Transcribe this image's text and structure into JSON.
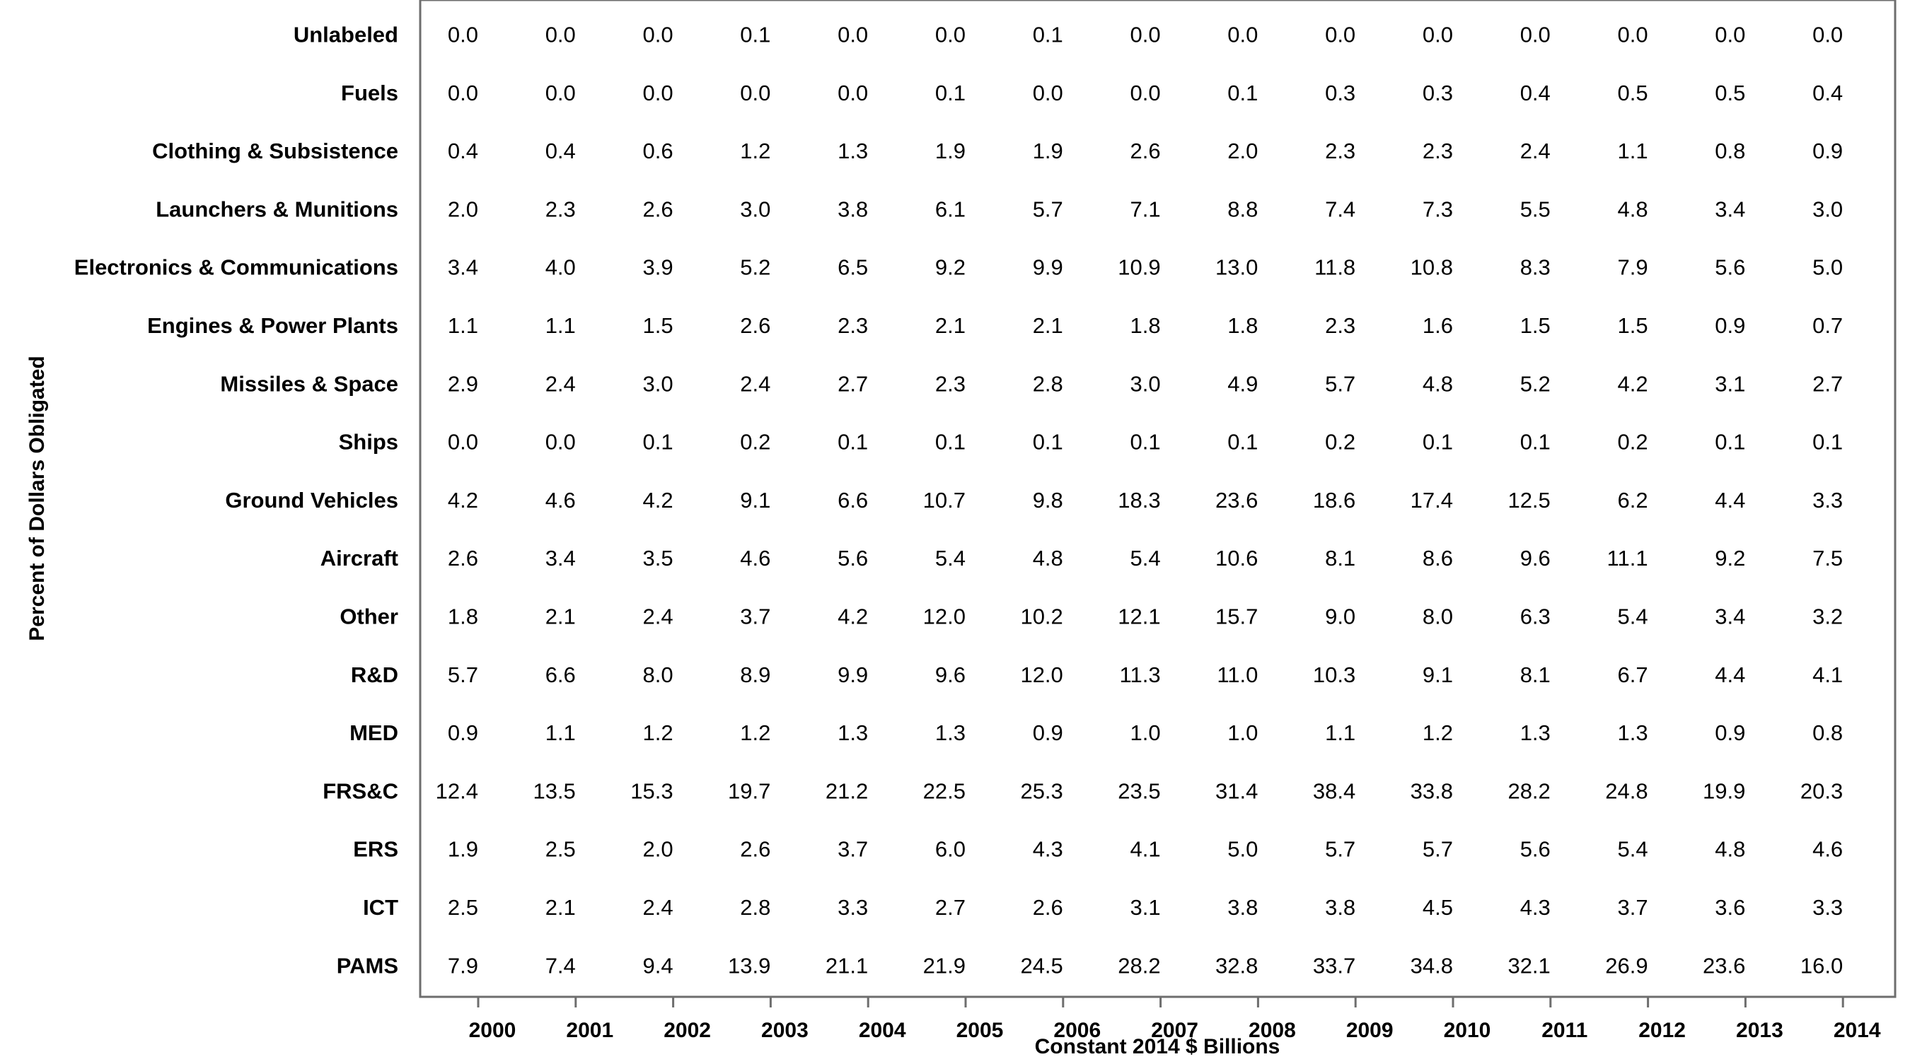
{
  "chart_data": {
    "type": "table",
    "title": "",
    "xlabel": "Constant 2014 $ Billions",
    "ylabel": "Percent of Dollars Obligated",
    "x": [
      "2000",
      "2001",
      "2002",
      "2003",
      "2004",
      "2005",
      "2006",
      "2007",
      "2008",
      "2009",
      "2010",
      "2011",
      "2012",
      "2013",
      "2014"
    ],
    "rows": [
      {
        "label": "Unlabeled",
        "values": [
          "0.0",
          "0.0",
          "0.0",
          "0.1",
          "0.0",
          "0.0",
          "0.1",
          "0.0",
          "0.0",
          "0.0",
          "0.0",
          "0.0",
          "0.0",
          "0.0",
          "0.0"
        ]
      },
      {
        "label": "Fuels",
        "values": [
          "0.0",
          "0.0",
          "0.0",
          "0.0",
          "0.0",
          "0.1",
          "0.0",
          "0.0",
          "0.1",
          "0.3",
          "0.3",
          "0.4",
          "0.5",
          "0.5",
          "0.4"
        ]
      },
      {
        "label": "Clothing & Subsistence",
        "values": [
          "0.4",
          "0.4",
          "0.6",
          "1.2",
          "1.3",
          "1.9",
          "1.9",
          "2.6",
          "2.0",
          "2.3",
          "2.3",
          "2.4",
          "1.1",
          "0.8",
          "0.9"
        ]
      },
      {
        "label": "Launchers & Munitions",
        "values": [
          "2.0",
          "2.3",
          "2.6",
          "3.0",
          "3.8",
          "6.1",
          "5.7",
          "7.1",
          "8.8",
          "7.4",
          "7.3",
          "5.5",
          "4.8",
          "3.4",
          "3.0"
        ]
      },
      {
        "label": "Electronics & Communications",
        "values": [
          "3.4",
          "4.0",
          "3.9",
          "5.2",
          "6.5",
          "9.2",
          "9.9",
          "10.9",
          "13.0",
          "11.8",
          "10.8",
          "8.3",
          "7.9",
          "5.6",
          "5.0"
        ]
      },
      {
        "label": "Engines & Power Plants",
        "values": [
          "1.1",
          "1.1",
          "1.5",
          "2.6",
          "2.3",
          "2.1",
          "2.1",
          "1.8",
          "1.8",
          "2.3",
          "1.6",
          "1.5",
          "1.5",
          "0.9",
          "0.7"
        ]
      },
      {
        "label": "Missiles & Space",
        "values": [
          "2.9",
          "2.4",
          "3.0",
          "2.4",
          "2.7",
          "2.3",
          "2.8",
          "3.0",
          "4.9",
          "5.7",
          "4.8",
          "5.2",
          "4.2",
          "3.1",
          "2.7"
        ]
      },
      {
        "label": "Ships",
        "values": [
          "0.0",
          "0.0",
          "0.1",
          "0.2",
          "0.1",
          "0.1",
          "0.1",
          "0.1",
          "0.1",
          "0.2",
          "0.1",
          "0.1",
          "0.2",
          "0.1",
          "0.1"
        ]
      },
      {
        "label": "Ground Vehicles",
        "values": [
          "4.2",
          "4.6",
          "4.2",
          "9.1",
          "6.6",
          "10.7",
          "9.8",
          "18.3",
          "23.6",
          "18.6",
          "17.4",
          "12.5",
          "6.2",
          "4.4",
          "3.3"
        ]
      },
      {
        "label": "Aircraft",
        "values": [
          "2.6",
          "3.4",
          "3.5",
          "4.6",
          "5.6",
          "5.4",
          "4.8",
          "5.4",
          "10.6",
          "8.1",
          "8.6",
          "9.6",
          "11.1",
          "9.2",
          "7.5"
        ]
      },
      {
        "label": "Other",
        "values": [
          "1.8",
          "2.1",
          "2.4",
          "3.7",
          "4.2",
          "12.0",
          "10.2",
          "12.1",
          "15.7",
          "9.0",
          "8.0",
          "6.3",
          "5.4",
          "3.4",
          "3.2"
        ]
      },
      {
        "label": "R&D",
        "values": [
          "5.7",
          "6.6",
          "8.0",
          "8.9",
          "9.9",
          "9.6",
          "12.0",
          "11.3",
          "11.0",
          "10.3",
          "9.1",
          "8.1",
          "6.7",
          "4.4",
          "4.1"
        ]
      },
      {
        "label": "MED",
        "values": [
          "0.9",
          "1.1",
          "1.2",
          "1.2",
          "1.3",
          "1.3",
          "0.9",
          "1.0",
          "1.0",
          "1.1",
          "1.2",
          "1.3",
          "1.3",
          "0.9",
          "0.8"
        ]
      },
      {
        "label": "FRS&C",
        "values": [
          "12.4",
          "13.5",
          "15.3",
          "19.7",
          "21.2",
          "22.5",
          "25.3",
          "23.5",
          "31.4",
          "38.4",
          "33.8",
          "28.2",
          "24.8",
          "19.9",
          "20.3"
        ]
      },
      {
        "label": "ERS",
        "values": [
          "1.9",
          "2.5",
          "2.0",
          "2.6",
          "3.7",
          "6.0",
          "4.3",
          "4.1",
          "5.0",
          "5.7",
          "5.7",
          "5.6",
          "5.4",
          "4.8",
          "4.6"
        ]
      },
      {
        "label": "ICT",
        "values": [
          "2.5",
          "2.1",
          "2.4",
          "2.8",
          "3.3",
          "2.7",
          "2.6",
          "3.1",
          "3.8",
          "3.8",
          "4.5",
          "4.3",
          "3.7",
          "3.6",
          "3.3"
        ]
      },
      {
        "label": "PAMS",
        "values": [
          "7.9",
          "7.4",
          "9.4",
          "13.9",
          "21.1",
          "21.9",
          "24.5",
          "28.2",
          "32.8",
          "33.7",
          "34.8",
          "32.1",
          "26.9",
          "23.6",
          "16.0"
        ]
      }
    ],
    "grid": false,
    "legend": "none"
  }
}
